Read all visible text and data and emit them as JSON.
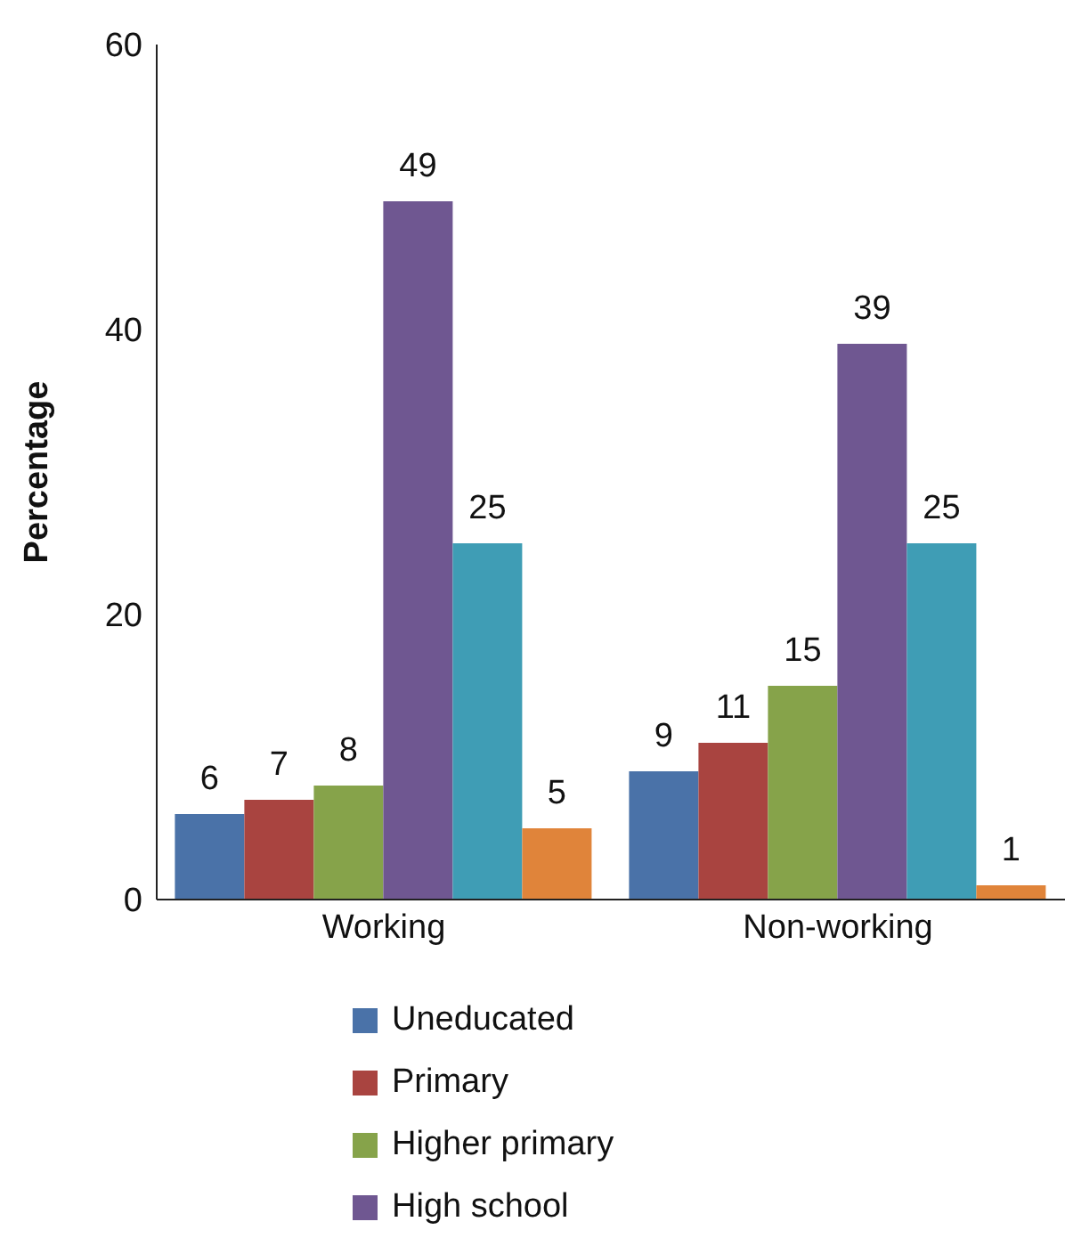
{
  "chart_data": {
    "type": "bar",
    "ylabel": "Percentage",
    "categories": [
      "Working",
      "Non-working"
    ],
    "series": [
      {
        "name": "Uneducated",
        "color": "#4a72a8",
        "values": [
          6,
          9
        ]
      },
      {
        "name": "Primary",
        "color": "#a94440",
        "values": [
          7,
          11
        ]
      },
      {
        "name": "Higher primary",
        "color": "#86a34a",
        "values": [
          8,
          15
        ]
      },
      {
        "name": "High school",
        "color": "#6f5791",
        "values": [
          49,
          39
        ]
      },
      {
        "color": "#3f9db5",
        "values": [
          25,
          25
        ]
      },
      {
        "color": "#e0843a",
        "values": [
          5,
          1
        ]
      }
    ],
    "ylim": [
      0,
      60
    ],
    "yticks": [
      0,
      20,
      40,
      60
    ],
    "grid": false,
    "legend": "bottom",
    "data_labels": true
  }
}
